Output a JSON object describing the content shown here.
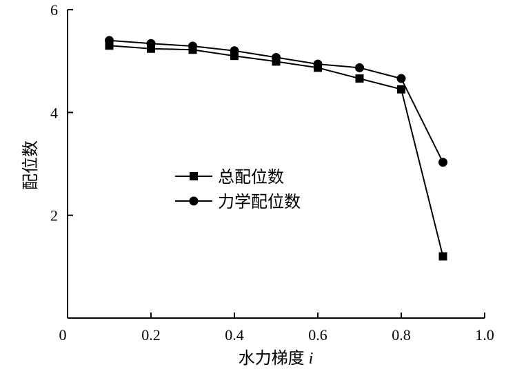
{
  "chart_data": {
    "type": "line",
    "title": "",
    "xlabel": "水力梯度",
    "xlabel_var": "i",
    "ylabel": "配位数",
    "xlim": [
      0,
      1.0
    ],
    "ylim": [
      0,
      6
    ],
    "x_ticks": [
      0,
      0.2,
      0.4,
      0.6,
      0.8,
      1.0
    ],
    "x_tick_labels": [
      "0",
      "0.2",
      "0.4",
      "0.6",
      "0.8",
      "1.0"
    ],
    "y_ticks": [
      2,
      4,
      6
    ],
    "y_tick_labels": [
      "2",
      "4",
      "6"
    ],
    "grid": false,
    "legend_position": "center-left",
    "series": [
      {
        "name": "总配位数",
        "marker": "square",
        "x": [
          0.1,
          0.2,
          0.3,
          0.4,
          0.5,
          0.6,
          0.7,
          0.8,
          0.9
        ],
        "values": [
          5.3,
          5.24,
          5.22,
          5.1,
          4.99,
          4.87,
          4.66,
          4.45,
          1.2
        ]
      },
      {
        "name": "力学配位数",
        "marker": "circle",
        "x": [
          0.1,
          0.2,
          0.3,
          0.4,
          0.5,
          0.6,
          0.7,
          0.8,
          0.9
        ],
        "values": [
          5.4,
          5.34,
          5.29,
          5.2,
          5.07,
          4.94,
          4.87,
          4.66,
          3.03
        ]
      }
    ]
  }
}
